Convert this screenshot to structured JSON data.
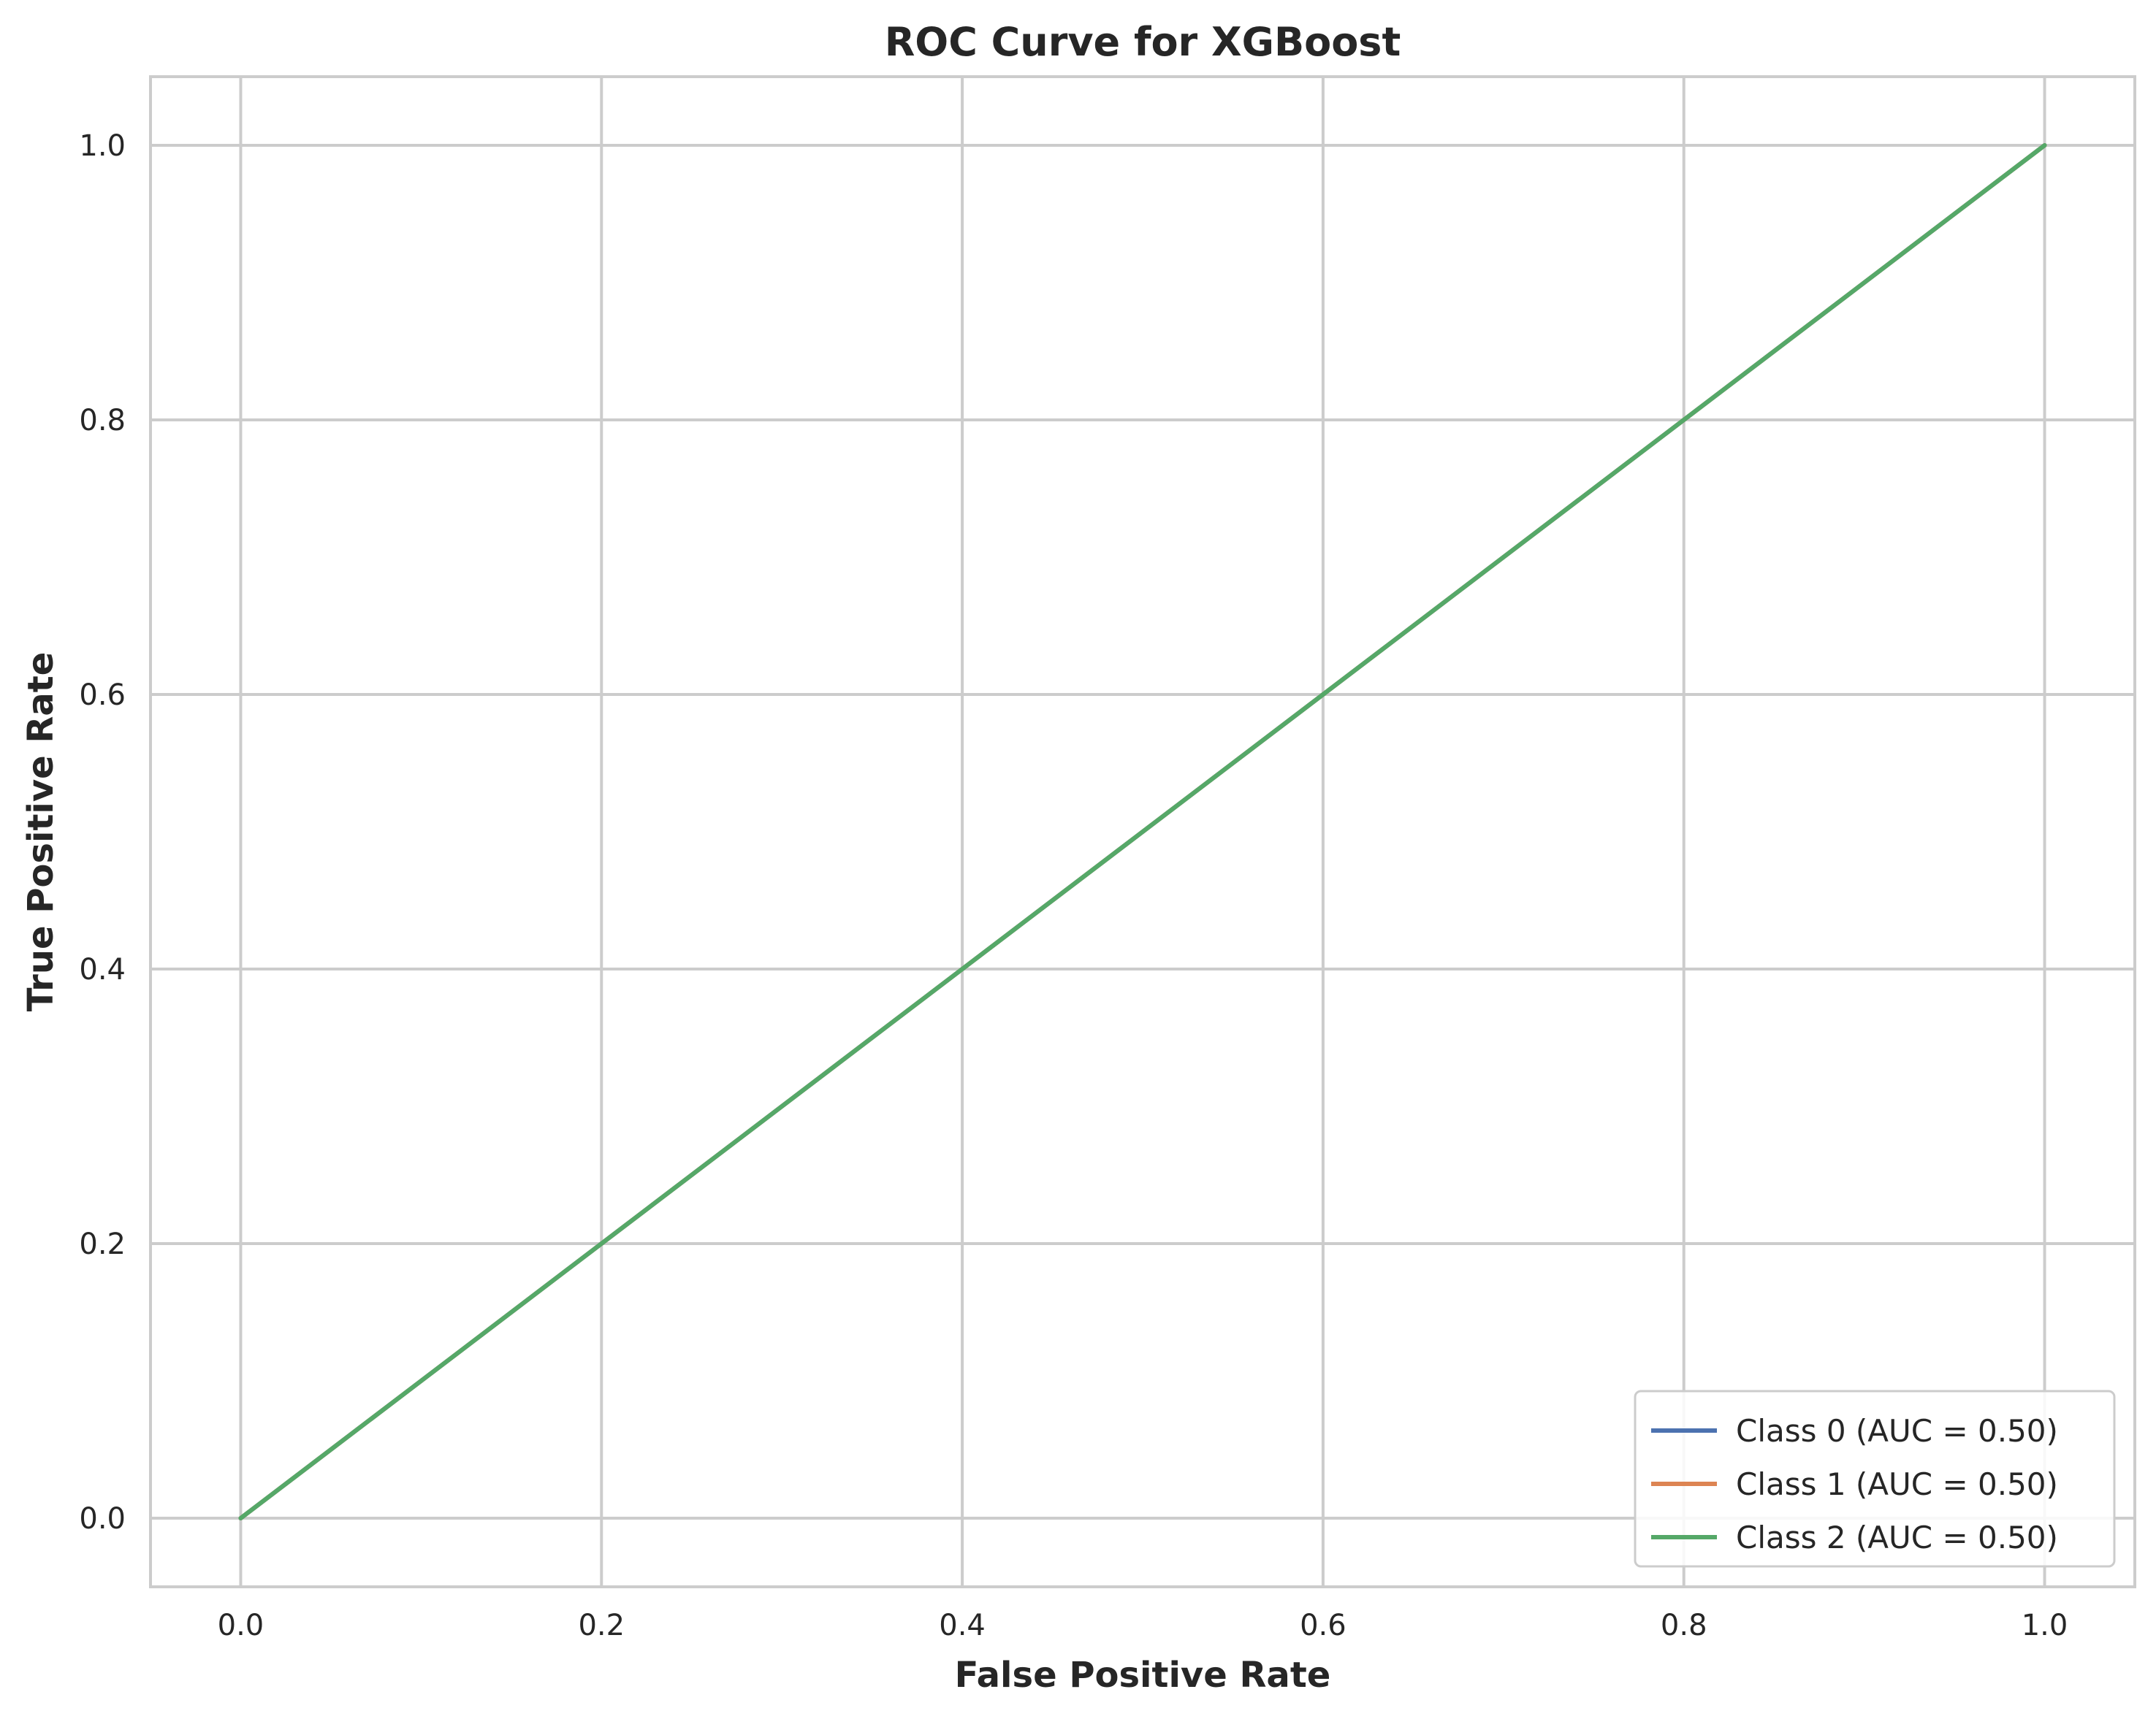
{
  "chart_data": {
    "type": "line",
    "title": "ROC Curve for XGBoost",
    "xlabel": "False Positive Rate",
    "ylabel": "True Positive Rate",
    "xlim": [
      -0.05,
      1.05
    ],
    "ylim": [
      -0.05,
      1.05
    ],
    "xticks": [
      "0.0",
      "0.2",
      "0.4",
      "0.6",
      "0.8",
      "1.0"
    ],
    "yticks": [
      "0.0",
      "0.2",
      "0.4",
      "0.6",
      "0.8",
      "1.0"
    ],
    "grid": true,
    "legend_position": "bottom-right",
    "series": [
      {
        "name": "Class 0 (AUC = 0.50)",
        "color": "#4c72b0",
        "x": [
          0.0,
          1.0
        ],
        "y": [
          0.0,
          1.0
        ]
      },
      {
        "name": "Class 1 (AUC = 0.50)",
        "color": "#dd8452",
        "x": [
          0.0,
          1.0
        ],
        "y": [
          0.0,
          1.0
        ]
      },
      {
        "name": "Class 2 (AUC = 0.50)",
        "color": "#55a868",
        "x": [
          0.0,
          1.0
        ],
        "y": [
          0.0,
          1.0
        ]
      }
    ]
  }
}
